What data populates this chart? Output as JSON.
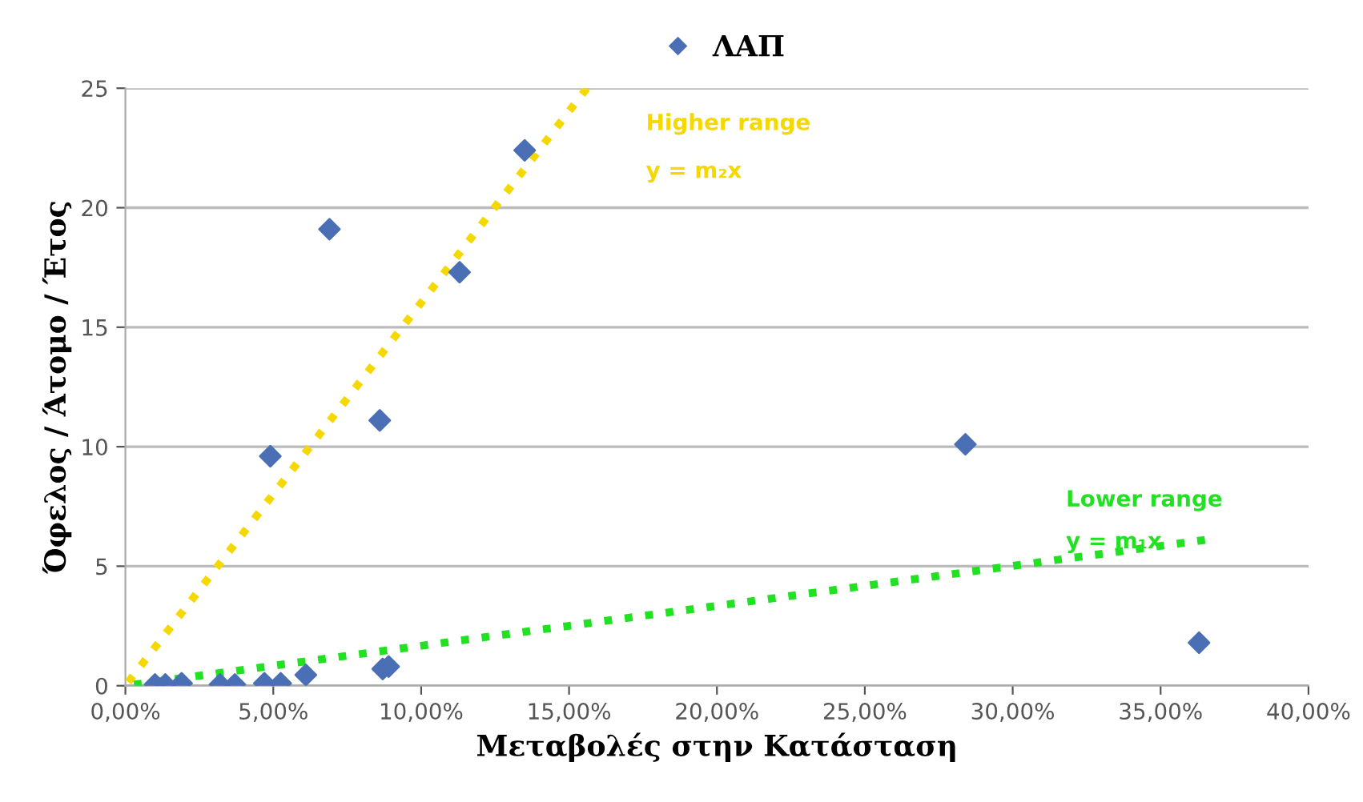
{
  "chart_data": {
    "type": "scatter",
    "xlabel": "Μεταβολές στην Κατάσταση",
    "ylabel": "Όφελος / Άτομο / Έτος",
    "series": [
      {
        "name": "ΛΑΠ",
        "color": "#4a6fb5",
        "marker": "diamond",
        "x": [
          6.9,
          11.3,
          13.5,
          4.9,
          8.6,
          28.4,
          36.3,
          8.7,
          8.9,
          1.0,
          1.35,
          1.9,
          3.2,
          3.7,
          4.7,
          5.25,
          6.1
        ],
        "values": [
          19.1,
          17.3,
          22.4,
          9.6,
          11.1,
          10.1,
          1.8,
          0.7,
          0.8,
          0.05,
          0.05,
          0.1,
          0.05,
          0.05,
          0.1,
          0.1,
          0.45
        ]
      },
      {
        "type": "line",
        "color": "#f5d800",
        "line_style": "dotted",
        "marker": "none",
        "x": [
          0,
          15.6
        ],
        "values": [
          0,
          25
        ]
      },
      {
        "type": "line",
        "color": "#22e022",
        "line_style": "dotted",
        "marker": "none",
        "x": [
          0,
          36.5
        ],
        "values": [
          0,
          6.1
        ]
      }
    ],
    "annotations": [
      "Higher range",
      "y = m₂x",
      "Lower range",
      "y = m₁x"
    ],
    "xlim": [
      0,
      40
    ],
    "xticks": [
      {
        "value": 0,
        "label": "0,00%"
      },
      {
        "value": 5,
        "label": "5,00%"
      },
      {
        "value": 10,
        "label": "10,00%"
      },
      {
        "value": 15,
        "label": "15,00%"
      },
      {
        "value": 20,
        "label": "20,00%"
      },
      {
        "value": 25,
        "label": "25,00%"
      },
      {
        "value": 30,
        "label": "30,00%"
      },
      {
        "value": 35,
        "label": "35,00%"
      },
      {
        "value": 40,
        "label": "40,00%"
      }
    ],
    "ylim": [
      0,
      25
    ],
    "yticks": [
      0,
      5,
      10,
      15,
      20,
      25
    ],
    "grid": "y",
    "legend": "top"
  }
}
